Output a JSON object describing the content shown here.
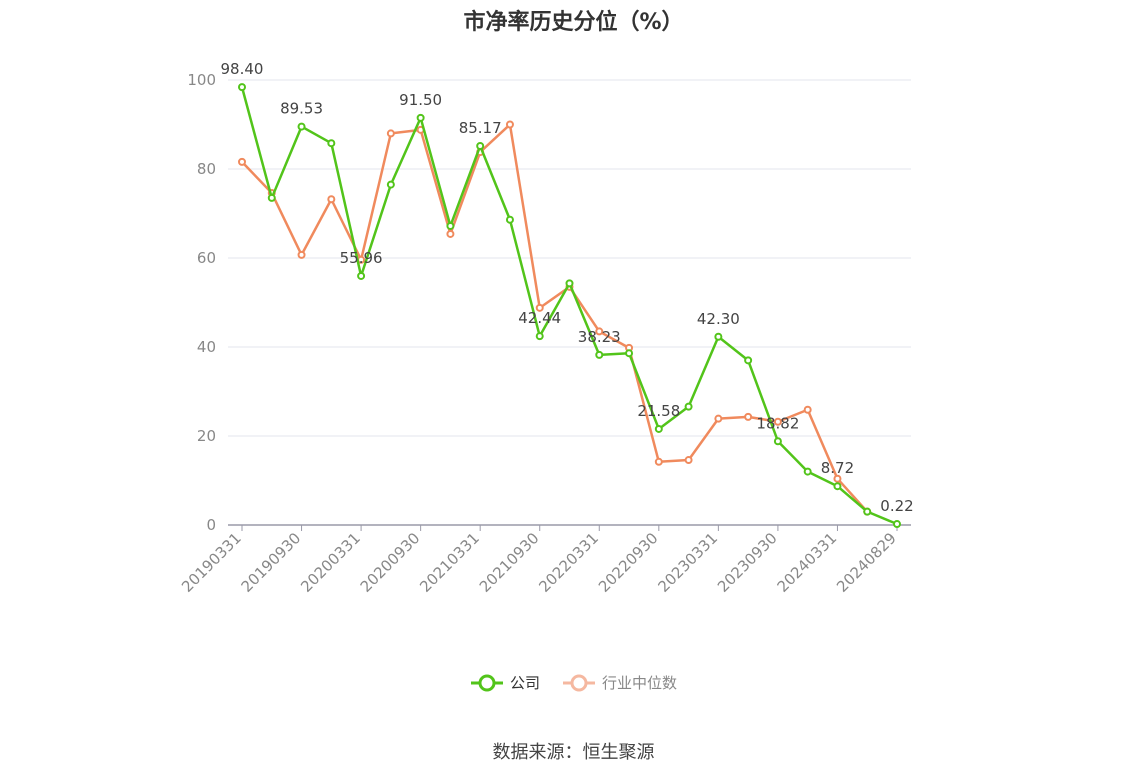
{
  "title": "市净率历史分位（%）",
  "source": "数据来源：恒生聚源",
  "legend": {
    "company": "公司",
    "industry": "行业中位数"
  },
  "colors": {
    "company": "#52c41a",
    "industry": "#f08a5d",
    "industry_legend": "#f5b8a0",
    "grid": "#e3e6ee",
    "axis": "#9a9aa8"
  },
  "chart_data": {
    "type": "line",
    "title": "市净率历史分位（%）",
    "ylim": [
      0,
      100
    ],
    "yticks": [
      0,
      20,
      40,
      60,
      80,
      100
    ],
    "x": [
      "20190331",
      "20190630",
      "20190930",
      "20191231",
      "20200331",
      "20200630",
      "20200930",
      "20201231",
      "20210331",
      "20210630",
      "20210930",
      "20211231",
      "20220331",
      "20220630",
      "20220930",
      "20221231",
      "20230331",
      "20230630",
      "20230930",
      "20231231",
      "20240331",
      "20240630",
      "20240829"
    ],
    "xtick_labels": [
      "20190331",
      "20190930",
      "20200331",
      "20200930",
      "20210331",
      "20210930",
      "20220331",
      "20220930",
      "20230331",
      "20230930",
      "20240331",
      "20240829"
    ],
    "grid": true,
    "legend_position": "bottom",
    "series": [
      {
        "name": "公司",
        "values": [
          98.4,
          73.5,
          89.53,
          85.8,
          55.96,
          76.5,
          91.5,
          67.2,
          85.17,
          68.6,
          42.44,
          54.3,
          38.23,
          38.6,
          21.58,
          26.6,
          42.3,
          37.0,
          18.82,
          12.0,
          8.72,
          3.0,
          0.22
        ],
        "labels": {
          "0": "98.40",
          "2": "89.53",
          "4": "55.96",
          "6": "91.50",
          "8": "85.17",
          "10": "42.44",
          "12": "38.23",
          "14": "21.58",
          "16": "42.30",
          "18": "18.82",
          "20": "8.72",
          "22": "0.22"
        }
      },
      {
        "name": "行业中位数",
        "values": [
          81.6,
          74.6,
          60.7,
          73.2,
          59.6,
          88.0,
          88.8,
          65.4,
          83.8,
          90.0,
          48.8,
          53.5,
          43.5,
          39.8,
          14.2,
          14.6,
          23.9,
          24.3,
          23.2,
          25.9,
          10.4,
          3.0,
          null
        ]
      }
    ]
  }
}
